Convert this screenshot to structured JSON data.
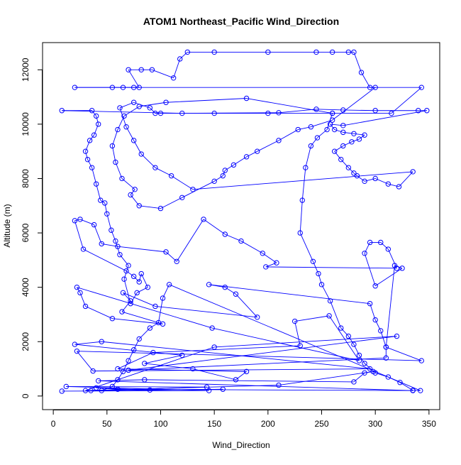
{
  "chart_data": {
    "type": "scatter",
    "title": "ATOM1 Northeast_Pacific Wind_Direction",
    "xlabel": "Wind_Direction",
    "ylabel": "Altitude (m)",
    "xlim": [
      -10,
      360
    ],
    "ylim": [
      -500,
      13000
    ],
    "x_ticks": [
      0,
      50,
      100,
      150,
      200,
      250,
      300,
      350
    ],
    "y_ticks": [
      0,
      2000,
      4000,
      6000,
      8000,
      10000,
      12000
    ],
    "grid": false,
    "legend": "none",
    "colors": {
      "series": "#0000ff",
      "axis": "#000000",
      "background": "#ffffff"
    },
    "series": [
      {
        "marker": "open-circle",
        "connected": true,
        "points": [
          [
            8,
            180
          ],
          [
            145,
            200
          ],
          [
            12,
            350
          ],
          [
            143,
            330
          ],
          [
            35,
            200
          ],
          [
            158,
            250
          ],
          [
            90,
            220
          ],
          [
            40,
            300
          ],
          [
            60,
            250
          ],
          [
            335,
            200
          ],
          [
            42,
            560
          ],
          [
            85,
            600
          ],
          [
            280,
            520
          ],
          [
            290,
            850
          ],
          [
            298,
            900
          ],
          [
            210,
            400
          ],
          [
            30,
            200
          ],
          [
            150,
            1800
          ],
          [
            320,
            2200
          ],
          [
            70,
            950
          ],
          [
            310,
            1400
          ],
          [
            310,
            1800
          ],
          [
            343,
            1300
          ],
          [
            22,
            1650
          ],
          [
            37,
            920
          ],
          [
            295,
            1000
          ],
          [
            45,
            2000
          ],
          [
            20,
            1900
          ],
          [
            120,
            1500
          ],
          [
            85,
            1200
          ],
          [
            130,
            1000
          ],
          [
            170,
            600
          ],
          [
            180,
            900
          ],
          [
            60,
            1000
          ],
          [
            93,
            1600
          ],
          [
            230,
            1850
          ],
          [
            225,
            2750
          ],
          [
            257,
            2950
          ],
          [
            285,
            1300
          ],
          [
            148,
            2500
          ],
          [
            22,
            4000
          ],
          [
            25,
            3800
          ],
          [
            30,
            3300
          ],
          [
            55,
            2850
          ],
          [
            102,
            2650
          ],
          [
            64,
            3100
          ],
          [
            72,
            3500
          ],
          [
            65,
            3800
          ],
          [
            95,
            3300
          ],
          [
            190,
            2900
          ],
          [
            170,
            3750
          ],
          [
            160,
            4000
          ],
          [
            145,
            4100
          ],
          [
            295,
            3400
          ],
          [
            300,
            2800
          ],
          [
            305,
            2400
          ],
          [
            310,
            1800
          ],
          [
            318,
            4800
          ],
          [
            325,
            4700
          ],
          [
            300,
            4050
          ],
          [
            290,
            5250
          ],
          [
            295,
            5650
          ],
          [
            305,
            5650
          ],
          [
            312,
            5400
          ],
          [
            320,
            4700
          ],
          [
            198,
            4750
          ],
          [
            208,
            4900
          ],
          [
            195,
            5250
          ],
          [
            175,
            5700
          ],
          [
            160,
            5950
          ],
          [
            140,
            6500
          ],
          [
            115,
            4950
          ],
          [
            105,
            5300
          ],
          [
            60,
            5500
          ],
          [
            45,
            5600
          ],
          [
            38,
            6300
          ],
          [
            25,
            6500
          ],
          [
            20,
            6450
          ],
          [
            28,
            5400
          ],
          [
            68,
            4600
          ],
          [
            75,
            4400
          ],
          [
            80,
            4200
          ],
          [
            82,
            4500
          ],
          [
            88,
            4000
          ],
          [
            78,
            3800
          ],
          [
            72,
            3400
          ],
          [
            66,
            4300
          ],
          [
            70,
            4800
          ],
          [
            62,
            5200
          ],
          [
            58,
            5700
          ],
          [
            54,
            6100
          ],
          [
            50,
            6700
          ],
          [
            48,
            7100
          ],
          [
            44,
            7200
          ],
          [
            40,
            7800
          ],
          [
            36,
            8400
          ],
          [
            32,
            8700
          ],
          [
            30,
            9000
          ],
          [
            34,
            9400
          ],
          [
            38,
            9600
          ],
          [
            42,
            10000
          ],
          [
            40,
            10300
          ],
          [
            36,
            10500
          ],
          [
            8,
            10500
          ],
          [
            120,
            10400
          ],
          [
            210,
            10420
          ],
          [
            245,
            10550
          ],
          [
            270,
            10520
          ],
          [
            300,
            10500
          ],
          [
            340,
            10500
          ],
          [
            348,
            10500
          ],
          [
            270,
            9950
          ],
          [
            258,
            10000
          ],
          [
            262,
            9800
          ],
          [
            270,
            9700
          ],
          [
            280,
            9650
          ],
          [
            290,
            9600
          ],
          [
            285,
            9450
          ],
          [
            278,
            9350
          ],
          [
            270,
            9200
          ],
          [
            262,
            9000
          ],
          [
            268,
            8700
          ],
          [
            275,
            8400
          ],
          [
            280,
            8200
          ],
          [
            283,
            8100
          ],
          [
            290,
            7900
          ],
          [
            300,
            8000
          ],
          [
            312,
            7800
          ],
          [
            322,
            7700
          ],
          [
            335,
            8250
          ],
          [
            130,
            7600
          ],
          [
            110,
            8100
          ],
          [
            95,
            8400
          ],
          [
            82,
            8900
          ],
          [
            75,
            9400
          ],
          [
            68,
            9900
          ],
          [
            62,
            10600
          ],
          [
            75,
            10800
          ],
          [
            90,
            10600
          ],
          [
            95,
            10400
          ],
          [
            100,
            10400
          ],
          [
            150,
            10400
          ],
          [
            200,
            10400
          ],
          [
            260,
            10400
          ],
          [
            315,
            10400
          ],
          [
            343,
            11350
          ],
          [
            20,
            11350
          ],
          [
            55,
            11350
          ],
          [
            65,
            11350
          ],
          [
            75,
            11350
          ],
          [
            80,
            11350
          ],
          [
            70,
            12000
          ],
          [
            82,
            12000
          ],
          [
            92,
            12000
          ],
          [
            112,
            11700
          ],
          [
            118,
            12400
          ],
          [
            125,
            12650
          ],
          [
            150,
            12650
          ],
          [
            200,
            12650
          ],
          [
            245,
            12650
          ],
          [
            260,
            12650
          ],
          [
            275,
            12650
          ],
          [
            280,
            12650
          ],
          [
            287,
            11900
          ],
          [
            295,
            11350
          ],
          [
            300,
            11350
          ],
          [
            260,
            10150
          ],
          [
            240,
            9900
          ],
          [
            228,
            9800
          ],
          [
            210,
            9400
          ],
          [
            190,
            9000
          ],
          [
            180,
            8800
          ],
          [
            168,
            8500
          ],
          [
            160,
            8300
          ],
          [
            158,
            8100
          ],
          [
            150,
            7900
          ],
          [
            120,
            7300
          ],
          [
            100,
            6900
          ],
          [
            80,
            7000
          ],
          [
            72,
            7400
          ],
          [
            76,
            7600
          ],
          [
            64,
            8000
          ],
          [
            58,
            8600
          ],
          [
            55,
            9200
          ],
          [
            60,
            9800
          ],
          [
            66,
            10300
          ],
          [
            80,
            10650
          ],
          [
            105,
            10800
          ],
          [
            180,
            10950
          ],
          [
            260,
            10400
          ],
          [
            255,
            9800
          ],
          [
            246,
            9500
          ],
          [
            240,
            9200
          ],
          [
            235,
            8400
          ],
          [
            232,
            7200
          ],
          [
            230,
            6000
          ],
          [
            242,
            4950
          ],
          [
            247,
            4500
          ],
          [
            250,
            4100
          ],
          [
            258,
            3500
          ],
          [
            268,
            2500
          ],
          [
            275,
            2200
          ],
          [
            280,
            1900
          ],
          [
            285,
            1500
          ],
          [
            290,
            1200
          ],
          [
            300,
            850
          ],
          [
            312,
            700
          ],
          [
            323,
            500
          ],
          [
            335,
            210
          ],
          [
            342,
            200
          ],
          [
            108,
            4100
          ],
          [
            102,
            3600
          ],
          [
            98,
            2700
          ],
          [
            90,
            2500
          ],
          [
            80,
            2100
          ],
          [
            75,
            1700
          ],
          [
            70,
            1300
          ],
          [
            65,
            900
          ],
          [
            60,
            600
          ],
          [
            55,
            350
          ],
          [
            45,
            200
          ]
        ]
      }
    ]
  }
}
